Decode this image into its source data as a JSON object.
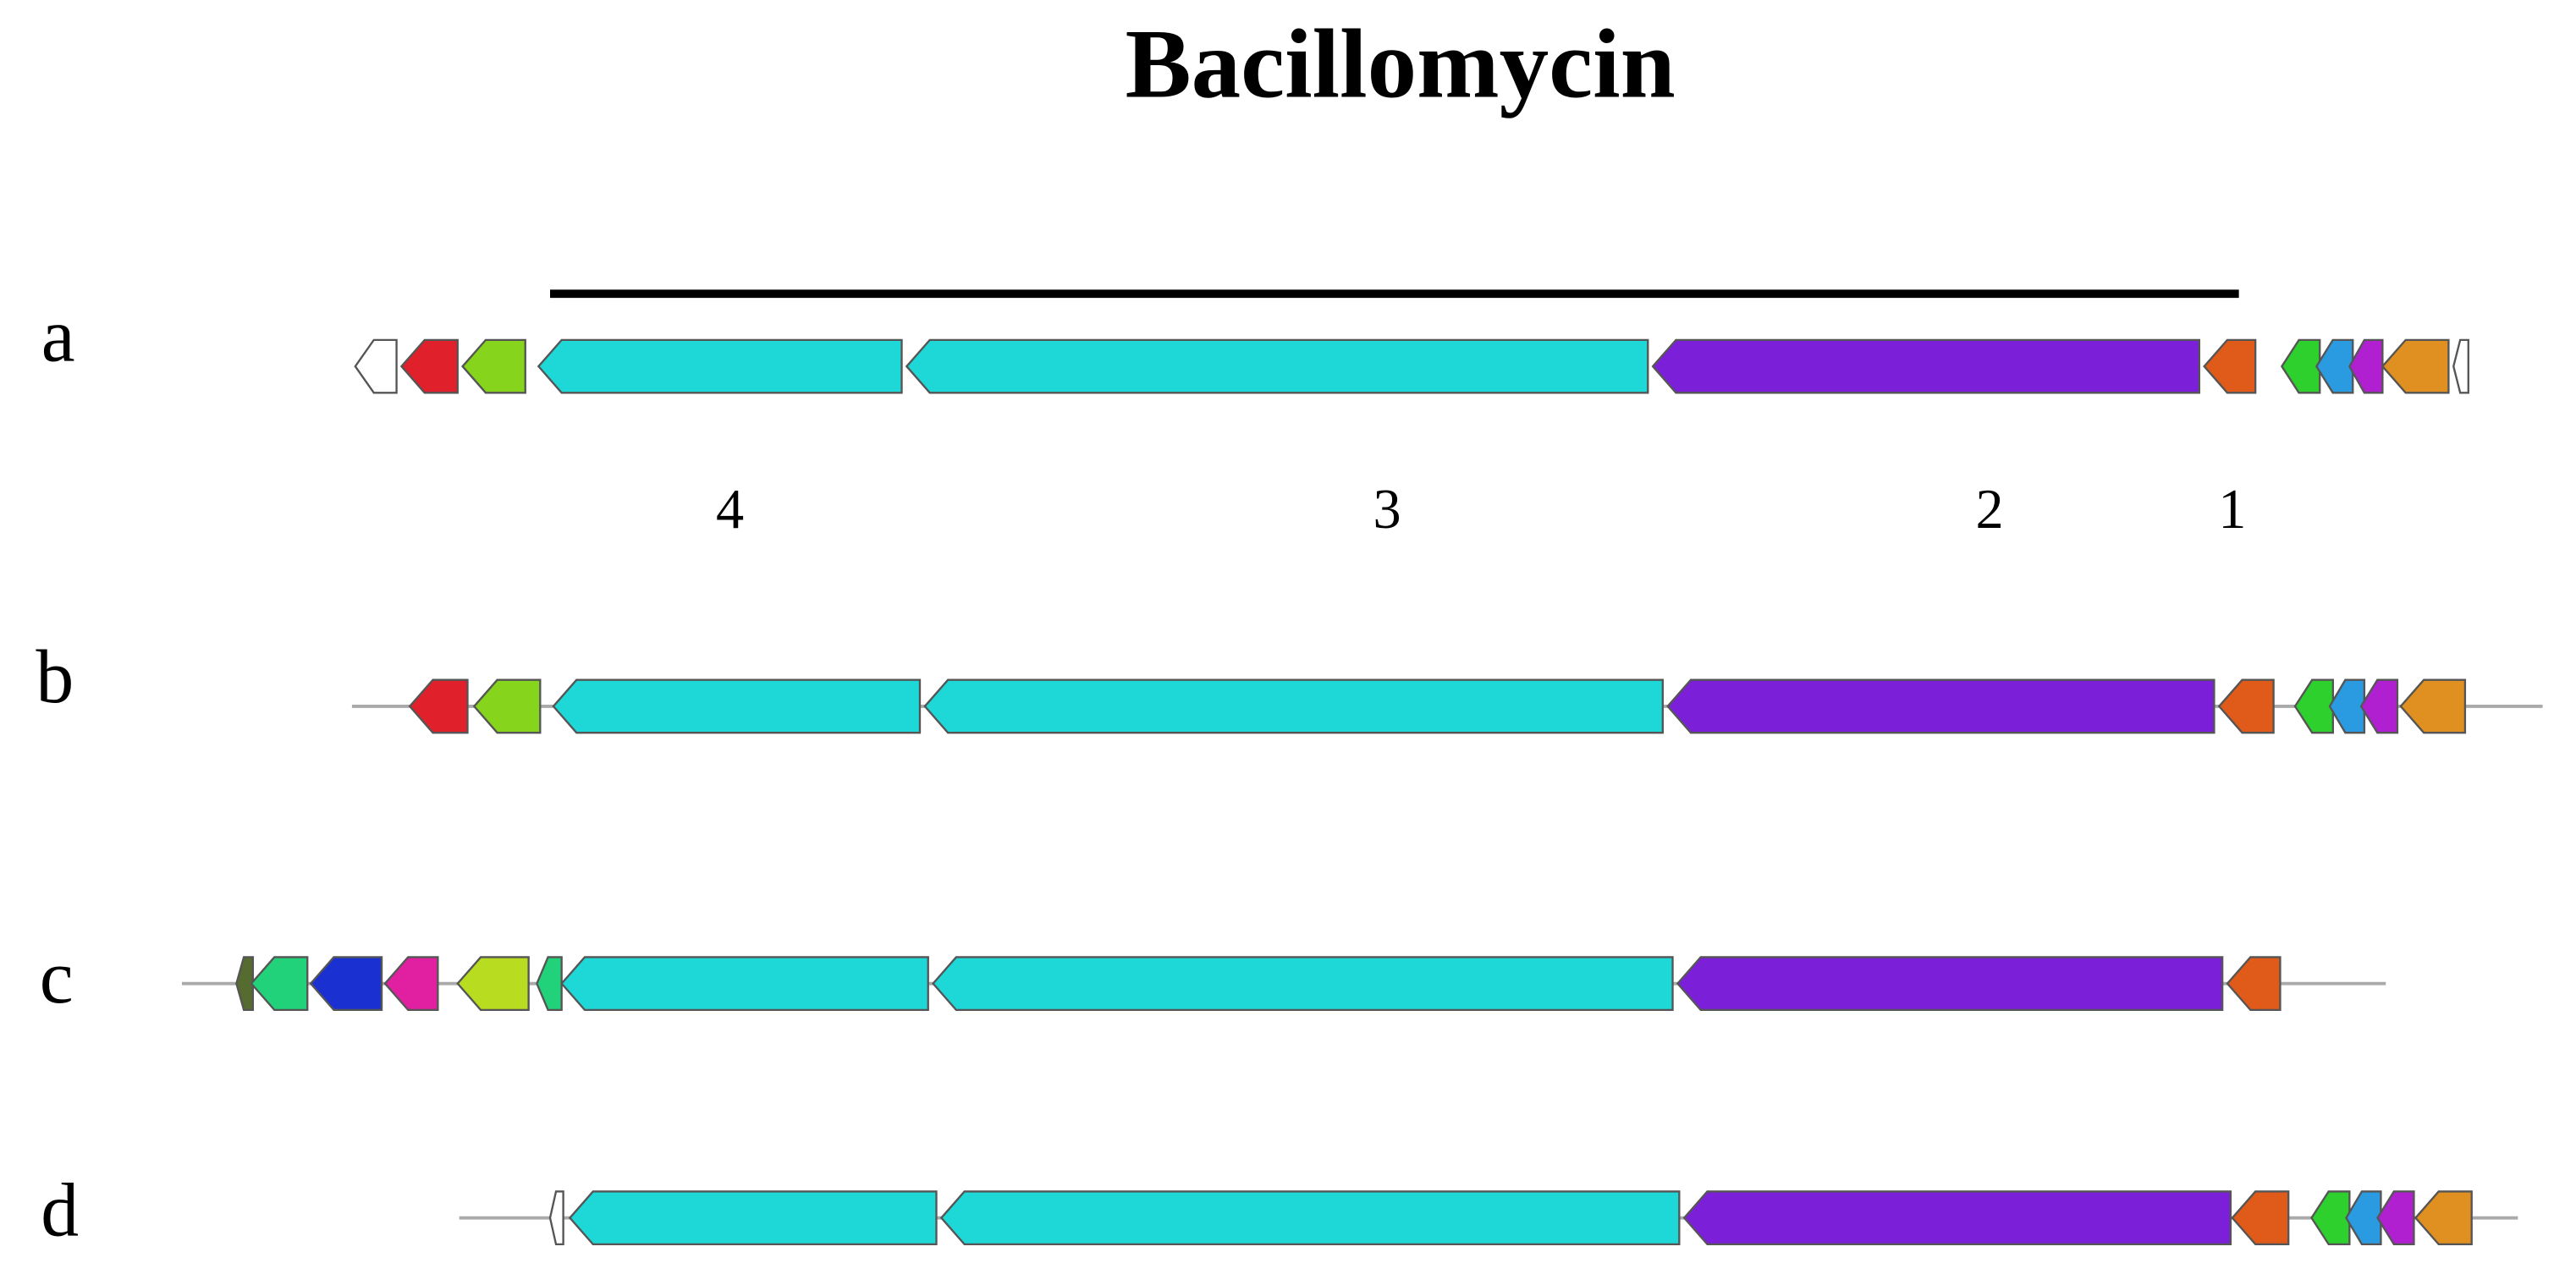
{
  "title": "Bacillomycin",
  "rows": [
    "a",
    "b",
    "c",
    "d"
  ],
  "gene_numbers": [
    "4",
    "3",
    "2",
    "1"
  ]
}
